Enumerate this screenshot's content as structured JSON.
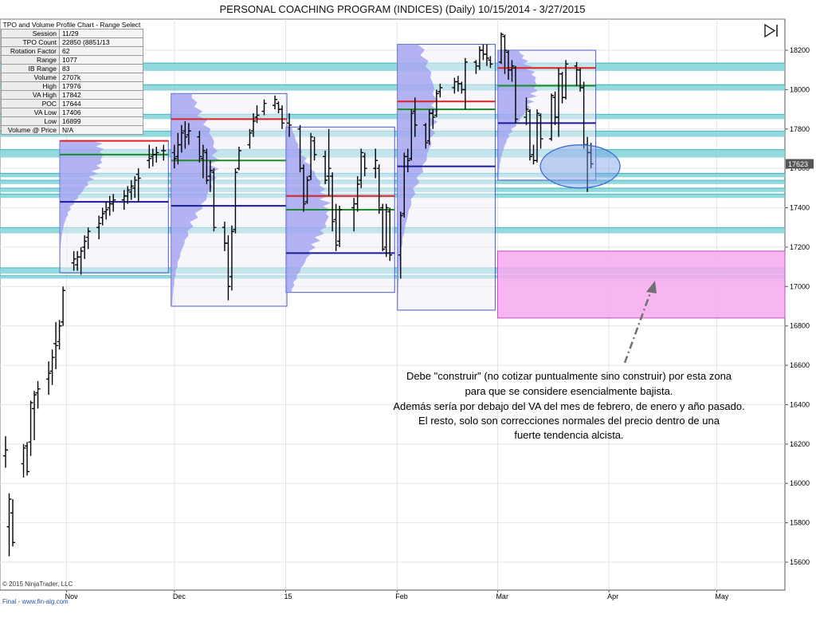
{
  "window": {
    "title": "PERSONAL COACHING PROGRAM (INDICES) (Daily)  10/15/2014 - 3/27/2015"
  },
  "info_panel": {
    "header": "TPO and Volume Profile Chart - Range Select",
    "rows": [
      {
        "label": "Session",
        "value": "11/29"
      },
      {
        "label": "TPO Count",
        "value": "22850 (8851/13"
      },
      {
        "label": "Rotation Factor",
        "value": "62"
      },
      {
        "label": "Range",
        "value": "1077"
      },
      {
        "label": "IB Range",
        "value": "83"
      },
      {
        "label": "Volume",
        "value": "2707k"
      },
      {
        "label": "High",
        "value": "17976"
      },
      {
        "label": "VA High",
        "value": "17842"
      },
      {
        "label": "POC",
        "value": "17644"
      },
      {
        "label": "VA Low",
        "value": "17406"
      },
      {
        "label": "Low",
        "value": "16899"
      },
      {
        "label": "Volume @ Price",
        "value": "N/A"
      }
    ]
  },
  "footer": {
    "copyright": "© 2015 NinjaTrader, LLC",
    "source": "Final - www.fin-alg.com"
  },
  "annotation": {
    "lines": [
      "Debe \"construir\" (no cotizar puntualmente sino construir) por esta zona",
      "para que se considere esencialmente bajista.",
      "Además sería por debajo del VA del mes de febrero, de enero y año pasado.",
      "El resto, solo son correcciones normales del precio dentro de una",
      "fuerte tendencia alcista."
    ]
  },
  "colors": {
    "band": "#7fd3d8",
    "band_edge": "#2ea9b4",
    "profile": "#9c9cf0",
    "box_fill": "#eeeef8",
    "box_border": "#4a58c8",
    "vah": "#e02020",
    "poc": "#1e8a2a",
    "val": "#1a1a9a",
    "target_zone": "#f6a9f0",
    "ellipse": "#3a6fd8",
    "bar": "#000000",
    "price_badge": "#555555"
  },
  "chart_data": {
    "type": "ohlc",
    "title": "PERSONAL COACHING PROGRAM (INDICES) (Daily)  10/15/2014 - 3/27/2015",
    "ylim": [
      15450,
      18280
    ],
    "y_ticks": [
      15600,
      15800,
      16000,
      16200,
      16400,
      16600,
      16800,
      17000,
      17200,
      17400,
      17600,
      17800,
      18000,
      18200
    ],
    "x_ticks": [
      {
        "label": "Nov",
        "date": "2014-11-01"
      },
      {
        "label": "Dec",
        "date": "2014-12-01"
      },
      {
        "label": "15",
        "date": "2015-01-01"
      },
      {
        "label": "Feb",
        "date": "2015-02-01"
      },
      {
        "label": "Mar",
        "date": "2015-03-01"
      },
      {
        "label": "Apr",
        "date": "2015-04-01"
      },
      {
        "label": "May",
        "date": "2015-05-01"
      }
    ],
    "x_domain": [
      "2014-10-15",
      "2015-05-20"
    ],
    "last_price": "17623",
    "bars": [
      {
        "d": "2014-10-15",
        "o": 16140,
        "h": 16240,
        "l": 16080,
        "c": 16170
      },
      {
        "d": "2014-10-16",
        "o": 15780,
        "h": 15950,
        "l": 15630,
        "c": 15920
      },
      {
        "d": "2014-10-17",
        "o": 15850,
        "h": 15920,
        "l": 15680,
        "c": 15700
      },
      {
        "d": "2014-10-20",
        "o": 16100,
        "h": 16200,
        "l": 16030,
        "c": 16180
      },
      {
        "d": "2014-10-21",
        "o": 16190,
        "h": 16210,
        "l": 16040,
        "c": 16060
      },
      {
        "d": "2014-10-22",
        "o": 16210,
        "h": 16420,
        "l": 16140,
        "c": 16410
      },
      {
        "d": "2014-10-23",
        "o": 16380,
        "h": 16470,
        "l": 16220,
        "c": 16450
      },
      {
        "d": "2014-10-24",
        "o": 16460,
        "h": 16520,
        "l": 16380,
        "c": 16480
      },
      {
        "d": "2014-10-27",
        "o": 16530,
        "h": 16620,
        "l": 16450,
        "c": 16560
      },
      {
        "d": "2014-10-28",
        "o": 16570,
        "h": 16680,
        "l": 16500,
        "c": 16640
      },
      {
        "d": "2014-10-29",
        "o": 16710,
        "h": 16820,
        "l": 16580,
        "c": 16700
      },
      {
        "d": "2014-10-30",
        "o": 16720,
        "h": 16830,
        "l": 16680,
        "c": 16800
      },
      {
        "d": "2014-10-31",
        "o": 16820,
        "h": 17000,
        "l": 16800,
        "c": 16980
      },
      {
        "d": "2014-11-03",
        "o": 17120,
        "h": 17180,
        "l": 17080,
        "c": 17140
      },
      {
        "d": "2014-11-04",
        "o": 17110,
        "h": 17180,
        "l": 17080,
        "c": 17150
      },
      {
        "d": "2014-11-05",
        "o": 17150,
        "h": 17200,
        "l": 17060,
        "c": 17180
      },
      {
        "d": "2014-11-06",
        "o": 17200,
        "h": 17260,
        "l": 17140,
        "c": 17230
      },
      {
        "d": "2014-11-07",
        "o": 17250,
        "h": 17300,
        "l": 17190,
        "c": 17280
      },
      {
        "d": "2014-11-10",
        "o": 17300,
        "h": 17360,
        "l": 17240,
        "c": 17320
      },
      {
        "d": "2014-11-11",
        "o": 17350,
        "h": 17400,
        "l": 17310,
        "c": 17370
      },
      {
        "d": "2014-11-12",
        "o": 17380,
        "h": 17430,
        "l": 17340,
        "c": 17390
      },
      {
        "d": "2014-11-13",
        "o": 17400,
        "h": 17460,
        "l": 17360,
        "c": 17420
      },
      {
        "d": "2014-11-14",
        "o": 17420,
        "h": 17470,
        "l": 17380,
        "c": 17440
      },
      {
        "d": "2014-11-17",
        "o": 17440,
        "h": 17490,
        "l": 17390,
        "c": 17460
      },
      {
        "d": "2014-11-18",
        "o": 17460,
        "h": 17510,
        "l": 17420,
        "c": 17490
      },
      {
        "d": "2014-11-19",
        "o": 17480,
        "h": 17540,
        "l": 17440,
        "c": 17510
      },
      {
        "d": "2014-11-20",
        "o": 17500,
        "h": 17560,
        "l": 17450,
        "c": 17540
      },
      {
        "d": "2014-11-21",
        "o": 17570,
        "h": 17600,
        "l": 17430,
        "c": 17550
      },
      {
        "d": "2014-11-24",
        "o": 17640,
        "h": 17720,
        "l": 17600,
        "c": 17650
      },
      {
        "d": "2014-11-25",
        "o": 17660,
        "h": 17700,
        "l": 17610,
        "c": 17670
      },
      {
        "d": "2014-11-26",
        "o": 17670,
        "h": 17710,
        "l": 17630,
        "c": 17680
      },
      {
        "d": "2014-11-28",
        "o": 17690,
        "h": 17720,
        "l": 17640,
        "c": 17690
      },
      {
        "d": "2014-12-01",
        "o": 17680,
        "h": 17720,
        "l": 17600,
        "c": 17650
      },
      {
        "d": "2014-12-02",
        "o": 17660,
        "h": 17780,
        "l": 17620,
        "c": 17720
      },
      {
        "d": "2014-12-03",
        "o": 17720,
        "h": 17820,
        "l": 17680,
        "c": 17780
      },
      {
        "d": "2014-12-04",
        "o": 17790,
        "h": 17840,
        "l": 17700,
        "c": 17760
      },
      {
        "d": "2014-12-05",
        "o": 17770,
        "h": 17830,
        "l": 17720,
        "c": 17790
      },
      {
        "d": "2014-12-08",
        "o": 17760,
        "h": 17790,
        "l": 17630,
        "c": 17660
      },
      {
        "d": "2014-12-09",
        "o": 17650,
        "h": 17720,
        "l": 17550,
        "c": 17690
      },
      {
        "d": "2014-12-10",
        "o": 17680,
        "h": 17700,
        "l": 17520,
        "c": 17540
      },
      {
        "d": "2014-12-11",
        "o": 17560,
        "h": 17640,
        "l": 17480,
        "c": 17590
      },
      {
        "d": "2014-12-12",
        "o": 17580,
        "h": 17600,
        "l": 17280,
        "c": 17300
      },
      {
        "d": "2014-12-15",
        "o": 17300,
        "h": 17330,
        "l": 17180,
        "c": 17220
      },
      {
        "d": "2014-12-16",
        "o": 17220,
        "h": 17260,
        "l": 16930,
        "c": 17000
      },
      {
        "d": "2014-12-17",
        "o": 17050,
        "h": 17310,
        "l": 16980,
        "c": 17280
      },
      {
        "d": "2014-12-18",
        "o": 17290,
        "h": 17600,
        "l": 17270,
        "c": 17580
      },
      {
        "d": "2014-12-19",
        "o": 17600,
        "h": 17710,
        "l": 17590,
        "c": 17690
      },
      {
        "d": "2014-12-22",
        "o": 17720,
        "h": 17800,
        "l": 17700,
        "c": 17780
      },
      {
        "d": "2014-12-23",
        "o": 17790,
        "h": 17880,
        "l": 17760,
        "c": 17840
      },
      {
        "d": "2014-12-24",
        "o": 17860,
        "h": 17920,
        "l": 17830,
        "c": 17870
      },
      {
        "d": "2014-12-26",
        "o": 17890,
        "h": 17950,
        "l": 17870,
        "c": 17930
      },
      {
        "d": "2014-12-29",
        "o": 17920,
        "h": 17970,
        "l": 17900,
        "c": 17950
      },
      {
        "d": "2014-12-30",
        "o": 17930,
        "h": 17940,
        "l": 17880,
        "c": 17900
      },
      {
        "d": "2014-12-31",
        "o": 17900,
        "h": 17920,
        "l": 17800,
        "c": 17830
      },
      {
        "d": "2015-01-02",
        "o": 17830,
        "h": 17880,
        "l": 17760,
        "c": 17820
      },
      {
        "d": "2015-01-05",
        "o": 17800,
        "h": 17820,
        "l": 17580,
        "c": 17600
      },
      {
        "d": "2015-01-06",
        "o": 17600,
        "h": 17620,
        "l": 17380,
        "c": 17420
      },
      {
        "d": "2015-01-07",
        "o": 17430,
        "h": 17560,
        "l": 17420,
        "c": 17540
      },
      {
        "d": "2015-01-08",
        "o": 17560,
        "h": 17780,
        "l": 17540,
        "c": 17760
      },
      {
        "d": "2015-01-09",
        "o": 17740,
        "h": 17760,
        "l": 17640,
        "c": 17670
      },
      {
        "d": "2015-01-12",
        "o": 17660,
        "h": 17690,
        "l": 17520,
        "c": 17540
      },
      {
        "d": "2015-01-13",
        "o": 17560,
        "h": 17800,
        "l": 17460,
        "c": 17600
      },
      {
        "d": "2015-01-14",
        "o": 17560,
        "h": 17580,
        "l": 17280,
        "c": 17330
      },
      {
        "d": "2015-01-15",
        "o": 17340,
        "h": 17420,
        "l": 17180,
        "c": 17210
      },
      {
        "d": "2015-01-16",
        "o": 17230,
        "h": 17410,
        "l": 17200,
        "c": 17390
      },
      {
        "d": "2015-01-20",
        "o": 17400,
        "h": 17450,
        "l": 17280,
        "c": 17420
      },
      {
        "d": "2015-01-21",
        "o": 17420,
        "h": 17560,
        "l": 17380,
        "c": 17520
      },
      {
        "d": "2015-01-22",
        "o": 17540,
        "h": 17700,
        "l": 17500,
        "c": 17680
      },
      {
        "d": "2015-01-23",
        "o": 17660,
        "h": 17680,
        "l": 17560,
        "c": 17600
      },
      {
        "d": "2015-01-26",
        "o": 17600,
        "h": 17700,
        "l": 17550,
        "c": 17640
      },
      {
        "d": "2015-01-27",
        "o": 17600,
        "h": 17620,
        "l": 17370,
        "c": 17390
      },
      {
        "d": "2015-01-28",
        "o": 17400,
        "h": 17420,
        "l": 17180,
        "c": 17190
      },
      {
        "d": "2015-01-29",
        "o": 17200,
        "h": 17420,
        "l": 17150,
        "c": 17400
      },
      {
        "d": "2015-01-30",
        "o": 17380,
        "h": 17400,
        "l": 17130,
        "c": 17160
      },
      {
        "d": "2015-02-02",
        "o": 17160,
        "h": 17380,
        "l": 17040,
        "c": 17360
      },
      {
        "d": "2015-02-03",
        "o": 17370,
        "h": 17680,
        "l": 17350,
        "c": 17660
      },
      {
        "d": "2015-02-04",
        "o": 17660,
        "h": 17700,
        "l": 17580,
        "c": 17640
      },
      {
        "d": "2015-02-05",
        "o": 17650,
        "h": 17900,
        "l": 17640,
        "c": 17880
      },
      {
        "d": "2015-02-06",
        "o": 17890,
        "h": 17960,
        "l": 17760,
        "c": 17820
      },
      {
        "d": "2015-02-09",
        "o": 17820,
        "h": 17830,
        "l": 17700,
        "c": 17730
      },
      {
        "d": "2015-02-10",
        "o": 17740,
        "h": 17900,
        "l": 17720,
        "c": 17880
      },
      {
        "d": "2015-02-11",
        "o": 17880,
        "h": 17900,
        "l": 17800,
        "c": 17860
      },
      {
        "d": "2015-02-12",
        "o": 17870,
        "h": 18000,
        "l": 17860,
        "c": 17980
      },
      {
        "d": "2015-02-13",
        "o": 17990,
        "h": 18030,
        "l": 17960,
        "c": 18010
      },
      {
        "d": "2015-02-17",
        "o": 18010,
        "h": 18060,
        "l": 17980,
        "c": 18040
      },
      {
        "d": "2015-02-18",
        "o": 18040,
        "h": 18070,
        "l": 17990,
        "c": 18030
      },
      {
        "d": "2015-02-19",
        "o": 18030,
        "h": 18040,
        "l": 17980,
        "c": 18000
      },
      {
        "d": "2015-02-20",
        "o": 18000,
        "h": 18160,
        "l": 17900,
        "c": 18140
      },
      {
        "d": "2015-02-23",
        "o": 18140,
        "h": 18150,
        "l": 18080,
        "c": 18120
      },
      {
        "d": "2015-02-24",
        "o": 18120,
        "h": 18220,
        "l": 18100,
        "c": 18200
      },
      {
        "d": "2015-02-25",
        "o": 18200,
        "h": 18230,
        "l": 18150,
        "c": 18180
      },
      {
        "d": "2015-02-26",
        "o": 18180,
        "h": 18230,
        "l": 18120,
        "c": 18160
      },
      {
        "d": "2015-02-27",
        "o": 18150,
        "h": 18170,
        "l": 18110,
        "c": 18130
      },
      {
        "d": "2015-03-02",
        "o": 18140,
        "h": 18290,
        "l": 18130,
        "c": 18280
      },
      {
        "d": "2015-03-03",
        "o": 18270,
        "h": 18280,
        "l": 18080,
        "c": 18200
      },
      {
        "d": "2015-03-04",
        "o": 18190,
        "h": 18200,
        "l": 18050,
        "c": 18100
      },
      {
        "d": "2015-03-05",
        "o": 18100,
        "h": 18150,
        "l": 18040,
        "c": 18120
      },
      {
        "d": "2015-03-06",
        "o": 18110,
        "h": 18120,
        "l": 17830,
        "c": 17850
      },
      {
        "d": "2015-03-09",
        "o": 17860,
        "h": 17960,
        "l": 17820,
        "c": 17900
      },
      {
        "d": "2015-03-10",
        "o": 17890,
        "h": 17900,
        "l": 17640,
        "c": 17660
      },
      {
        "d": "2015-03-11",
        "o": 17670,
        "h": 17720,
        "l": 17620,
        "c": 17640
      },
      {
        "d": "2015-03-12",
        "o": 17640,
        "h": 17900,
        "l": 17630,
        "c": 17880
      },
      {
        "d": "2015-03-13",
        "o": 17870,
        "h": 17880,
        "l": 17700,
        "c": 17750
      },
      {
        "d": "2015-03-16",
        "o": 17750,
        "h": 17980,
        "l": 17740,
        "c": 17970
      },
      {
        "d": "2015-03-17",
        "o": 17960,
        "h": 17990,
        "l": 17820,
        "c": 17860
      },
      {
        "d": "2015-03-18",
        "o": 17860,
        "h": 18110,
        "l": 17760,
        "c": 18080
      },
      {
        "d": "2015-03-19",
        "o": 18080,
        "h": 18090,
        "l": 17930,
        "c": 17960
      },
      {
        "d": "2015-03-20",
        "o": 17960,
        "h": 18150,
        "l": 17950,
        "c": 18130
      },
      {
        "d": "2015-03-23",
        "o": 18120,
        "h": 18140,
        "l": 18020,
        "c": 18100
      },
      {
        "d": "2015-03-24",
        "o": 18100,
        "h": 18110,
        "l": 17990,
        "c": 18010
      },
      {
        "d": "2015-03-25",
        "o": 18010,
        "h": 18040,
        "l": 17700,
        "c": 17720
      },
      {
        "d": "2015-03-26",
        "o": 17720,
        "h": 17760,
        "l": 17480,
        "c": 17680
      },
      {
        "d": "2015-03-27",
        "o": 17680,
        "h": 17730,
        "l": 17600,
        "c": 17623
      }
    ],
    "monthly_profiles": [
      {
        "from": "2014-10-31",
        "to": "2014-11-28",
        "high": 17740,
        "low": 17070,
        "vah": 17740,
        "poc": 17670,
        "val": 17430
      },
      {
        "from": "2014-12-01",
        "to": "2014-12-31",
        "high": 17980,
        "low": 16900,
        "vah": 17850,
        "poc": 17640,
        "val": 17410
      },
      {
        "from": "2015-01-02",
        "to": "2015-01-30",
        "high": 17810,
        "low": 16970,
        "vah": 17460,
        "poc": 17390,
        "val": 17170
      },
      {
        "from": "2015-02-02",
        "to": "2015-02-27",
        "high": 18230,
        "low": 16880,
        "vah": 17940,
        "poc": 17900,
        "val": 17610
      },
      {
        "from": "2015-03-02",
        "to": "2015-03-27",
        "high": 18200,
        "low": 17540,
        "vah": 18110,
        "poc": 18020,
        "val": 17830
      }
    ],
    "reference_bands": [
      [
        18095,
        18135
      ],
      [
        17995,
        18025
      ],
      [
        17850,
        17875
      ],
      [
        17760,
        17790
      ],
      [
        17655,
        17695
      ],
      [
        17555,
        17575
      ],
      [
        17520,
        17540
      ],
      [
        17480,
        17500
      ],
      [
        17450,
        17470
      ],
      [
        17270,
        17300
      ],
      [
        17065,
        17095
      ],
      [
        17040,
        17055
      ]
    ],
    "target_zone": {
      "from": "2015-03-01",
      "to": "2015-05-20",
      "top": 17180,
      "bottom": 16840
    },
    "ellipse_center": {
      "date": "2015-03-24",
      "price": 17610
    }
  }
}
